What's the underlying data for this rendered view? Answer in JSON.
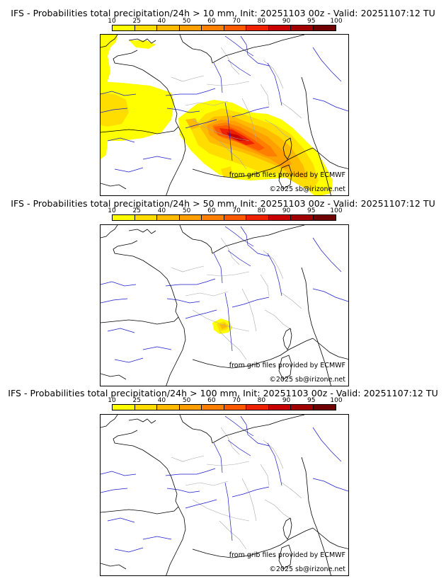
{
  "panels": [
    {
      "title": "IFS - Probabilities total precipitation/24h > 10 mm, Init: 20251103 00z - Valid: 20251107:12 TU",
      "credit_line1": "from grib files provided by ECMWF",
      "credit_line2": "©2025 sb@irizone.net",
      "probability_field": "widespread"
    },
    {
      "title": "IFS - Probabilities total precipitation/24h > 50 mm, Init: 20251103 00z - Valid: 20251107:12 TU",
      "credit_line1": "from grib files provided by ECMWF",
      "credit_line2": "©2025 sb@irizone.net",
      "probability_field": "small"
    },
    {
      "title": "IFS - Probabilities total precipitation/24h > 100 mm, Init: 20251103 00z - Valid: 20251107:12 TU",
      "credit_line1": "from grib files provided by ECMWF",
      "credit_line2": "©2025 sb@irizone.net",
      "probability_field": "none"
    }
  ],
  "colorbar": {
    "ticks": [
      "10",
      "25",
      "40",
      "50",
      "60",
      "70",
      "80",
      "90",
      "95",
      "100"
    ],
    "colors": [
      "#ffff00",
      "#ffdd00",
      "#ffbb00",
      "#ffa000",
      "#ff8000",
      "#ff5a00",
      "#ee2200",
      "#c80000",
      "#a00000",
      "#700000"
    ]
  },
  "map_style": {
    "coast_color": "#000000",
    "river_color": "#1a1acc",
    "border_color": "#aaaaaa"
  }
}
